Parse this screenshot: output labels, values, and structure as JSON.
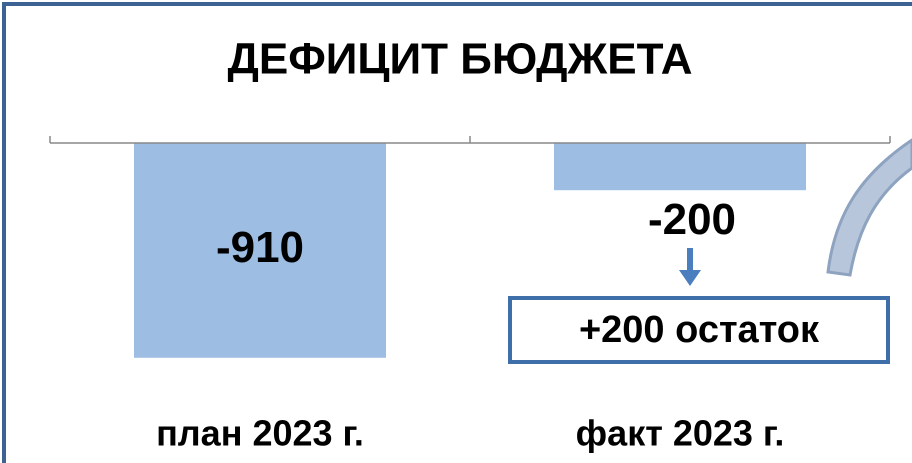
{
  "chart_data": {
    "type": "bar",
    "title": "ДЕФИЦИТ БЮДЖЕТА",
    "categories": [
      "план 2023 г.",
      "факт 2023 г."
    ],
    "values": [
      -910,
      -200
    ],
    "color": "#9dbde3",
    "ylim": [
      -1000,
      0
    ],
    "annotation": "+200 остаток"
  }
}
